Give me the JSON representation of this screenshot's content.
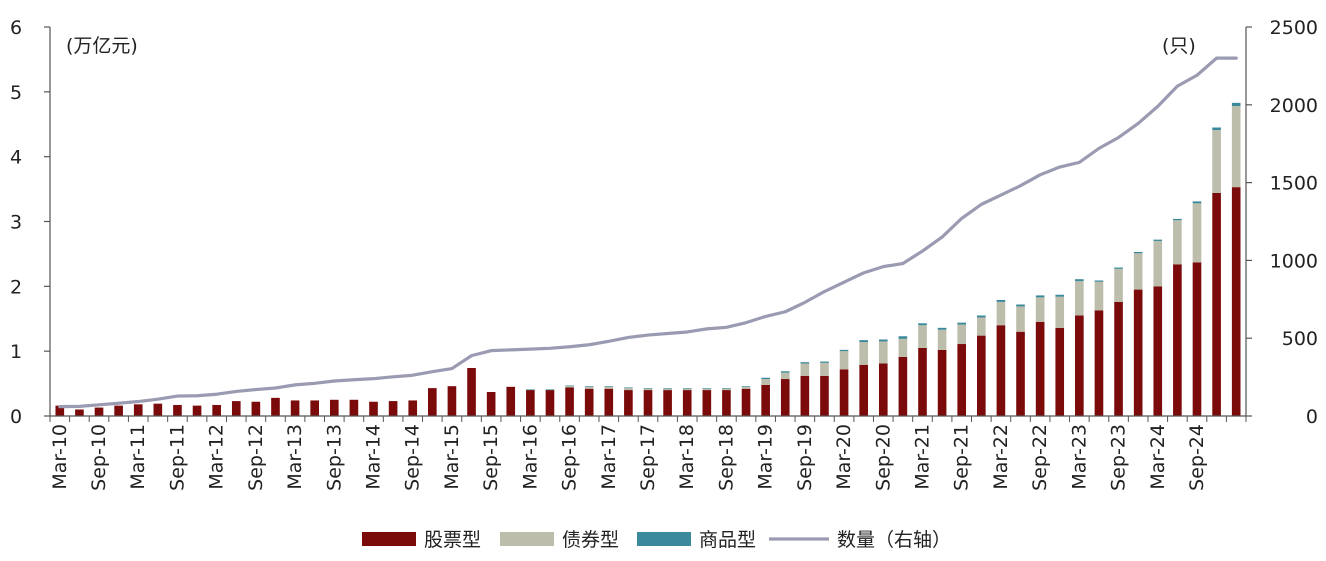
{
  "chart_data": {
    "type": "bar+line",
    "left_axis_unit": "(万亿元)",
    "right_axis_unit": "(只)",
    "ylim_left": [
      0,
      6
    ],
    "ylim_right": [
      0,
      2500
    ],
    "left_ticks": [
      "0",
      "1",
      "2",
      "3",
      "4",
      "5",
      "6"
    ],
    "right_ticks": [
      "0",
      "500",
      "1000",
      "1500",
      "2000",
      "2500"
    ],
    "tick_labels": [
      "Mar-10",
      "Sep-10",
      "Mar-11",
      "Sep-11",
      "Mar-12",
      "Sep-12",
      "Mar-13",
      "Sep-13",
      "Mar-14",
      "Sep-14",
      "Mar-15",
      "Sep-15",
      "Mar-16",
      "Sep-16",
      "Mar-17",
      "Sep-17",
      "Mar-18",
      "Sep-18",
      "Mar-19",
      "Sep-19",
      "Mar-20",
      "Sep-20",
      "Mar-21",
      "Sep-21",
      "Mar-22",
      "Sep-22",
      "Mar-23",
      "Sep-23",
      "Mar-24",
      "Sep-24"
    ],
    "series": [
      {
        "name": "股票型",
        "kind": "bar",
        "color": "#7b0a0a",
        "values": [
          0.16,
          0.1,
          0.13,
          0.16,
          0.18,
          0.19,
          0.17,
          0.16,
          0.17,
          0.23,
          0.22,
          0.28,
          0.24,
          0.24,
          0.25,
          0.25,
          0.22,
          0.23,
          0.24,
          0.43,
          0.46,
          0.74,
          0.37,
          0.45,
          0.4,
          0.4,
          0.44,
          0.42,
          0.42,
          0.4,
          0.4,
          0.4,
          0.4,
          0.4,
          0.4,
          0.42,
          0.48,
          0.57,
          0.62,
          0.62,
          0.72,
          0.79,
          0.81,
          0.91,
          1.05,
          1.02,
          1.11,
          1.24,
          1.4,
          1.3,
          1.45,
          1.36,
          1.55,
          1.63,
          1.76,
          1.95,
          2.0,
          2.34,
          2.37,
          3.44,
          3.53
        ]
      },
      {
        "name": "债券型",
        "kind": "bar",
        "color": "#bdbdab",
        "values": [
          0,
          0,
          0,
          0,
          0,
          0,
          0,
          0,
          0,
          0,
          0,
          0,
          0,
          0,
          0,
          0,
          0,
          0,
          0,
          0,
          0,
          0,
          0,
          0,
          0,
          0,
          0.02,
          0.03,
          0.03,
          0.03,
          0.02,
          0.02,
          0.02,
          0.02,
          0.02,
          0.03,
          0.09,
          0.1,
          0.19,
          0.2,
          0.28,
          0.35,
          0.34,
          0.28,
          0.35,
          0.31,
          0.3,
          0.28,
          0.36,
          0.39,
          0.38,
          0.48,
          0.53,
          0.44,
          0.51,
          0.56,
          0.7,
          0.68,
          0.91,
          0.97,
          1.25
        ]
      },
      {
        "name": "商品型",
        "kind": "bar",
        "color": "#3b8a9b",
        "values": [
          0,
          0,
          0,
          0,
          0,
          0,
          0,
          0,
          0,
          0,
          0,
          0,
          0,
          0,
          0,
          0,
          0,
          0,
          0,
          0,
          0,
          0,
          0,
          0,
          0.01,
          0.01,
          0.01,
          0.01,
          0.01,
          0.01,
          0.01,
          0.01,
          0.01,
          0.01,
          0.01,
          0.01,
          0.02,
          0.02,
          0.02,
          0.02,
          0.02,
          0.03,
          0.03,
          0.04,
          0.03,
          0.03,
          0.03,
          0.03,
          0.03,
          0.03,
          0.03,
          0.03,
          0.03,
          0.02,
          0.02,
          0.02,
          0.02,
          0.02,
          0.03,
          0.04,
          0.05
        ]
      },
      {
        "name": "数量（右轴）",
        "kind": "line",
        "axis": "right",
        "color": "#9a9ab2",
        "values": [
          60,
          62,
          72,
          82,
          93,
          108,
          128,
          130,
          140,
          158,
          170,
          180,
          200,
          210,
          225,
          233,
          240,
          252,
          262,
          285,
          305,
          388,
          420,
          425,
          430,
          435,
          445,
          458,
          480,
          505,
          520,
          530,
          540,
          560,
          570,
          600,
          640,
          670,
          730,
          800,
          860,
          920,
          960,
          980,
          1060,
          1150,
          1270,
          1360,
          1420,
          1480,
          1550,
          1600,
          1630,
          1720,
          1790,
          1880,
          1990,
          2120,
          2190,
          2300,
          2300
        ]
      }
    ]
  }
}
